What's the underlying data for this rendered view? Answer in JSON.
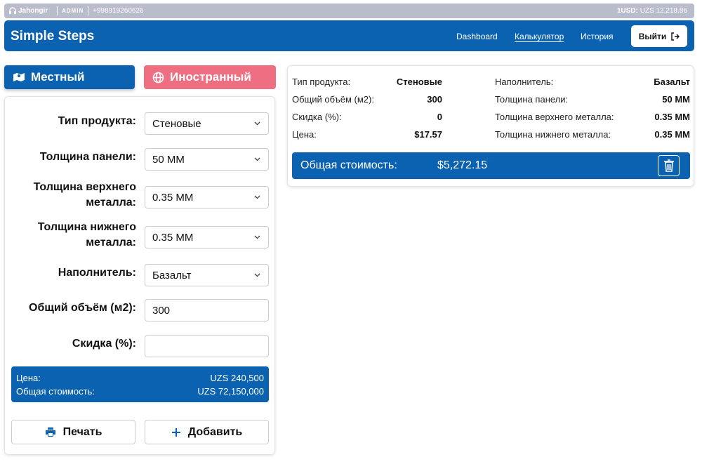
{
  "topbar": {
    "user": "Jahongir",
    "role": "ADMIN",
    "phone": "+998919260626",
    "rate_label": "1USD:",
    "rate_value": "UZS 12,218.86"
  },
  "navbar": {
    "brand": "Simple Steps",
    "links": [
      "Dashboard",
      "Калькулятор",
      "История"
    ],
    "logout": "Выйти"
  },
  "tabs": [
    "Местный",
    "Иностранный"
  ],
  "form": {
    "fields": [
      {
        "label": "Тип продукта:",
        "value": "Стеновые"
      },
      {
        "label": "Толщина панели:",
        "value": "50 MM"
      },
      {
        "label": "Толщина верхнего металла:",
        "value": "0.35 MM"
      },
      {
        "label": "Толщина нижнего металла:",
        "value": "0.35 MM"
      },
      {
        "label": "Наполнитель:",
        "value": "Базальт"
      },
      {
        "label": "Общий объём (м2):",
        "value": "300"
      },
      {
        "label": "Скидка (%):"
      }
    ],
    "summary": {
      "price_label": "Цена:",
      "price": "UZS 240,500",
      "total_label": "Общая стоимость:",
      "total": "UZS 72,150,000"
    },
    "buttons": [
      "Печать",
      "Добавить"
    ]
  },
  "result": {
    "left": [
      {
        "label": "Тип продукта:",
        "value": "Стеновые"
      },
      {
        "label": "Общий объём (м2):",
        "value": "300"
      },
      {
        "label": "Скидка (%):",
        "value": "0"
      },
      {
        "label": "Цена:",
        "value": "$17.57"
      }
    ],
    "right": [
      {
        "label": "Наполнитель:",
        "value": "Базальт"
      },
      {
        "label": "Толщина панели:",
        "value": "50 MM"
      },
      {
        "label": "Толщина верхнего металла:",
        "value": "0.35 MM"
      },
      {
        "label": "Толщина нижнего металла:",
        "value": "0.35 MM"
      }
    ],
    "total_label": "Общая стоимость:",
    "total": "$5,272.15"
  }
}
